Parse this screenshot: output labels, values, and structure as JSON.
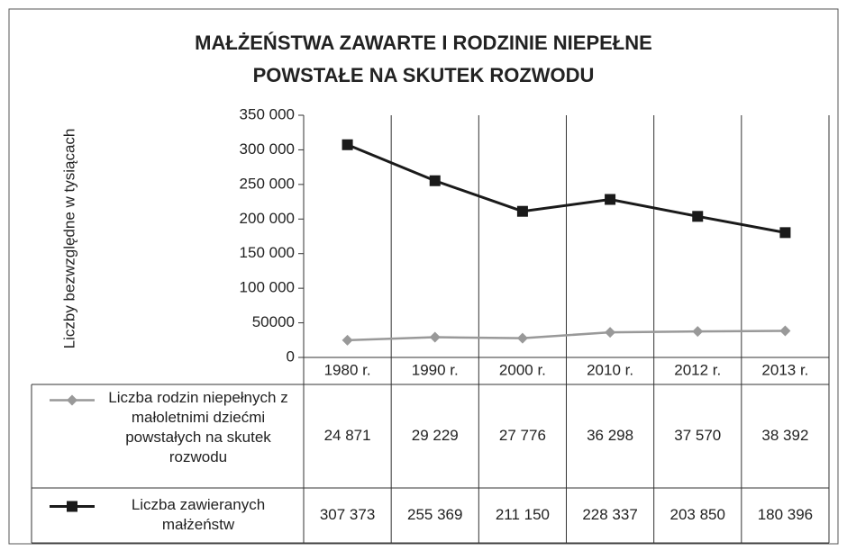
{
  "chart_data": {
    "type": "line",
    "title": "MAŁŻEŃSTWA ZAWARTE I RODZINIE NIEPEŁNE POWSTAŁE NA SKUTEK ROZWODU",
    "y_label": "Liczby bezwzględne w tysiącach",
    "categories": [
      "1980 r.",
      "1990 r.",
      "2000 r.",
      "2010 r.",
      "2012 r.",
      "2013 r."
    ],
    "series": [
      {
        "name": "Liczba rodzin niepełnych z małoletnimi dziećmi powstałych na skutek rozwodu",
        "color": "#999999",
        "marker": "diamond",
        "values": [
          24871,
          29229,
          27776,
          36298,
          37570,
          38392
        ],
        "value_labels": [
          "24 871",
          "29 229",
          "27 776",
          "36 298",
          "37 570",
          "38 392"
        ]
      },
      {
        "name": "Liczba zawieranych małżeństw",
        "color": "#1a1a1a",
        "marker": "square",
        "values": [
          307373,
          255369,
          211150,
          228337,
          203850,
          180396
        ],
        "value_labels": [
          "307 373",
          "255 369",
          "211 150",
          "228 337",
          "203 850",
          "180 396"
        ]
      }
    ],
    "ylim": [
      0,
      350000
    ],
    "yticks": [
      0,
      {
        "value": 50000,
        "label": "50000"
      },
      {
        "value": 100000,
        "label": "100 000"
      },
      {
        "value": 150000,
        "label": "150 000"
      },
      {
        "value": 200000,
        "label": "200 000"
      },
      {
        "value": 250000,
        "label": "250 000"
      },
      {
        "value": 300000,
        "label": "300 000"
      },
      {
        "value": 350000,
        "label": "350 000"
      }
    ]
  }
}
